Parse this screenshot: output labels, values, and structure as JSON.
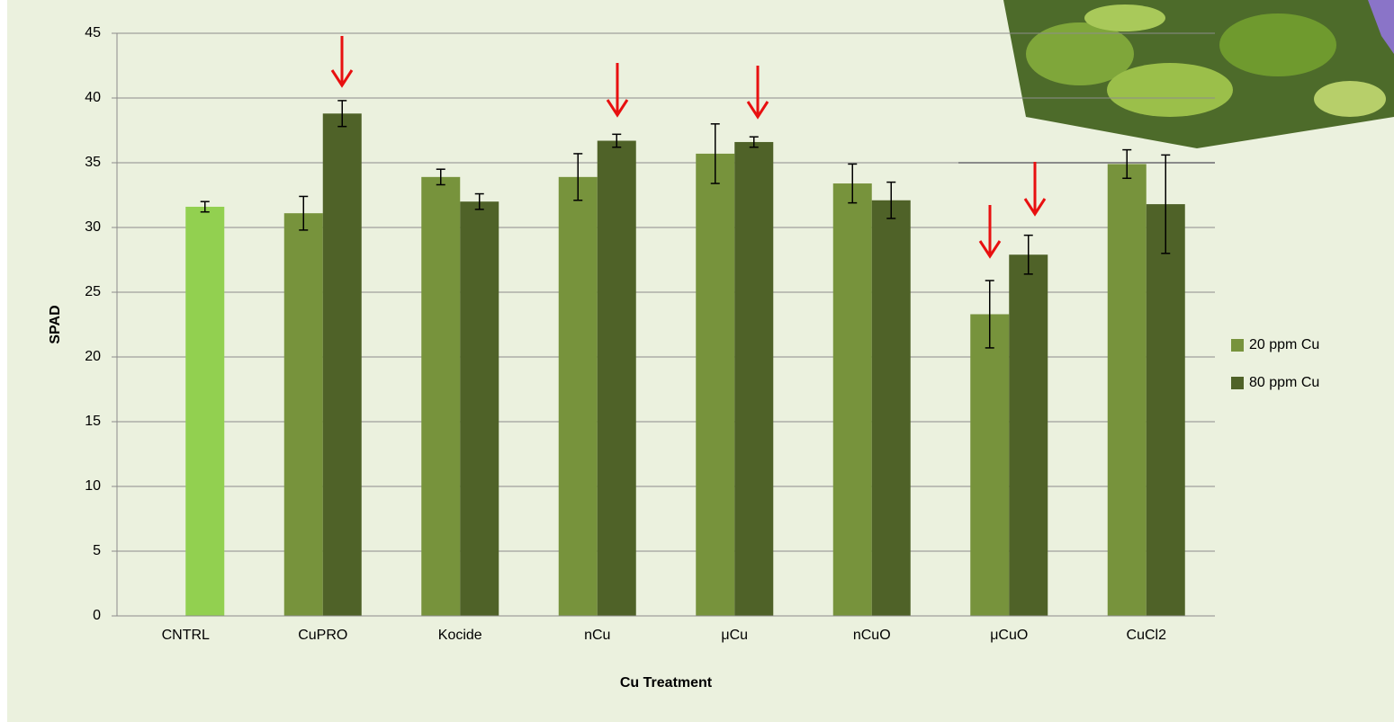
{
  "chart_data": {
    "type": "bar",
    "x_label": "Cu Treatment",
    "y_label": "SPAD",
    "categories": [
      "CNTRL",
      "CuPRO",
      "Kocide",
      "nCu",
      "μCu",
      "nCuO",
      "μCuO",
      "CuCl2"
    ],
    "series": [
      {
        "name": "20 ppm Cu",
        "color": "#77933c",
        "values": [
          null,
          31.1,
          33.9,
          33.9,
          35.7,
          33.4,
          23.3,
          34.9
        ],
        "errors": [
          null,
          1.3,
          0.6,
          1.8,
          2.3,
          1.5,
          2.6,
          1.1
        ]
      },
      {
        "name": "80 ppm Cu",
        "color": "#4f6228",
        "colors": [
          "#92d050",
          "#4f6228",
          "#4f6228",
          "#4f6228",
          "#4f6228",
          "#4f6228",
          "#4f6228",
          "#4f6228"
        ],
        "values": [
          31.6,
          38.8,
          32.0,
          36.7,
          36.6,
          32.1,
          27.9,
          31.8
        ],
        "errors": [
          0.4,
          1.0,
          0.6,
          0.5,
          0.4,
          1.4,
          1.5,
          3.8
        ]
      }
    ],
    "ylim": [
      0,
      45
    ],
    "yticks": [
      0,
      5,
      10,
      15,
      20,
      25,
      30,
      35,
      40,
      45
    ],
    "grid": true,
    "legend": "right"
  }
}
